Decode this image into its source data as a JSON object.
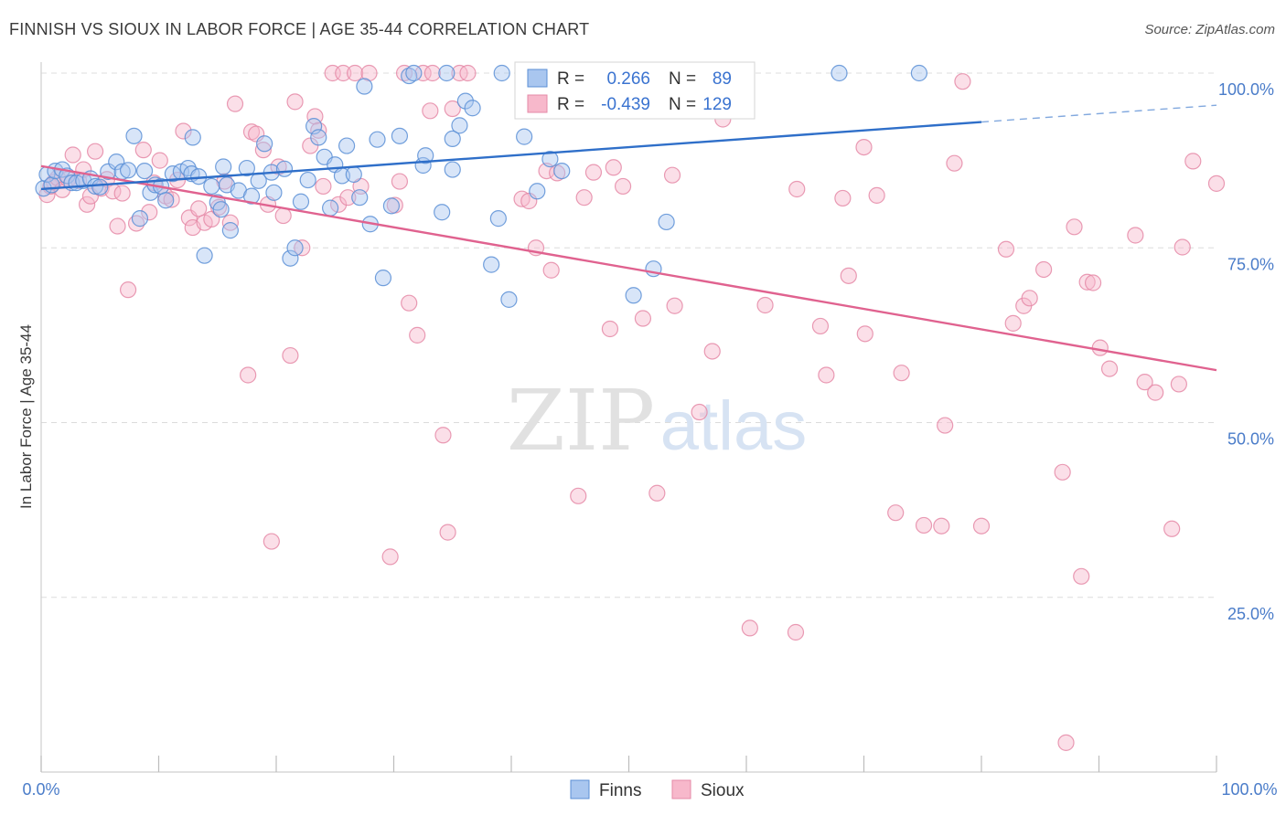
{
  "header": {
    "title": "FINNISH VS SIOUX IN LABOR FORCE | AGE 35-44 CORRELATION CHART",
    "source": "Source: ZipAtlas.com"
  },
  "watermark": {
    "zip": "ZIP",
    "atlas": "atlas"
  },
  "stats_legend": {
    "r_label": "R =",
    "n_label": "N =",
    "rows": [
      {
        "series": "Finns",
        "r": "0.266",
        "n": "89"
      },
      {
        "series": "Sioux",
        "r": "-0.439",
        "n": "129"
      }
    ]
  },
  "colors": {
    "finns_fill": "#a9c6ef",
    "finns_stroke": "#5b8fd6",
    "finns_line": "#2f6fc9",
    "sioux_fill": "#f7b8cb",
    "sioux_stroke": "#e58aa7",
    "sioux_line": "#e0628f",
    "value_text": "#3a73d0",
    "grid": "#dcdcdc"
  },
  "chart_data": {
    "type": "scatter",
    "title": "FINNISH VS SIOUX IN LABOR FORCE | AGE 35-44 CORRELATION CHART",
    "xlabel": "",
    "ylabel": "In Labor Force | Age 35-44",
    "xlim": [
      0,
      100
    ],
    "ylim": [
      0,
      100
    ],
    "x_tick_labels": [
      "0.0%",
      "100.0%"
    ],
    "y_tick_labels": [
      "25.0%",
      "50.0%",
      "75.0%",
      "100.0%"
    ],
    "y_ticks": [
      25,
      50,
      75,
      100
    ],
    "grid": true,
    "legend_position": "bottom-center",
    "series": [
      {
        "name": "Finns",
        "trend": {
          "x": [
            0,
            80
          ],
          "y": [
            83.4,
            93.0
          ],
          "dashed_to": [
            100,
            95.4
          ]
        },
        "points": [
          [
            0.2,
            83.5
          ],
          [
            0.5,
            85.5
          ],
          [
            0.9,
            84
          ],
          [
            1.2,
            86
          ],
          [
            1.8,
            86.2
          ],
          [
            2.2,
            85.3
          ],
          [
            2.6,
            84.3
          ],
          [
            3,
            84.3
          ],
          [
            3.6,
            84.6
          ],
          [
            4.2,
            84.9
          ],
          [
            4.6,
            83.8
          ],
          [
            5,
            83.7
          ],
          [
            5.7,
            85.9
          ],
          [
            6.4,
            87.3
          ],
          [
            6.9,
            85.9
          ],
          [
            7.4,
            86.1
          ],
          [
            7.9,
            91
          ],
          [
            8.4,
            79.2
          ],
          [
            8.8,
            86
          ],
          [
            9.3,
            82.9
          ],
          [
            9.7,
            84
          ],
          [
            10.2,
            83.8
          ],
          [
            10.6,
            81.8
          ],
          [
            11.2,
            85.6
          ],
          [
            11.9,
            85.9
          ],
          [
            12.5,
            86.4
          ],
          [
            12.8,
            85.6
          ],
          [
            12.9,
            90.8
          ],
          [
            13.4,
            85.2
          ],
          [
            13.9,
            73.9
          ],
          [
            14.5,
            83.8
          ],
          [
            15,
            81.5
          ],
          [
            15.3,
            80.5
          ],
          [
            15.5,
            86.6
          ],
          [
            15.8,
            84
          ],
          [
            16.1,
            77.5
          ],
          [
            16.8,
            83.2
          ],
          [
            17.5,
            86.4
          ],
          [
            17.9,
            82.4
          ],
          [
            18.5,
            84.6
          ],
          [
            19,
            89.9
          ],
          [
            19.6,
            85.8
          ],
          [
            19.8,
            82.9
          ],
          [
            20.7,
            86.3
          ],
          [
            21.2,
            73.5
          ],
          [
            21.6,
            75
          ],
          [
            22.1,
            81.6
          ],
          [
            22.7,
            84.7
          ],
          [
            23.2,
            92.4
          ],
          [
            23.6,
            90.8
          ],
          [
            24.1,
            88
          ],
          [
            24.6,
            80.7
          ],
          [
            25,
            86.9
          ],
          [
            25.6,
            85.3
          ],
          [
            26,
            89.6
          ],
          [
            26.6,
            85.5
          ],
          [
            27.1,
            82.2
          ],
          [
            27.5,
            98.1
          ],
          [
            28,
            78.4
          ],
          [
            28.6,
            90.5
          ],
          [
            29.1,
            70.7
          ],
          [
            29.8,
            81
          ],
          [
            30.5,
            91
          ],
          [
            31.3,
            99.6
          ],
          [
            31.7,
            100
          ],
          [
            32.5,
            86.8
          ],
          [
            32.7,
            88.2
          ],
          [
            34.1,
            80.1
          ],
          [
            34.5,
            100
          ],
          [
            35,
            86.2
          ],
          [
            35,
            90.6
          ],
          [
            35.6,
            92.5
          ],
          [
            36.1,
            96
          ],
          [
            36.7,
            95
          ],
          [
            38.3,
            72.6
          ],
          [
            38.9,
            79.2
          ],
          [
            39.2,
            100
          ],
          [
            39.8,
            67.6
          ],
          [
            41.1,
            90.9
          ],
          [
            42.2,
            83.1
          ],
          [
            43.3,
            87.7
          ],
          [
            44.3,
            86
          ],
          [
            46.4,
            100
          ],
          [
            50.4,
            68.2
          ],
          [
            52.1,
            72
          ],
          [
            53.2,
            78.7
          ],
          [
            53.5,
            100
          ],
          [
            67.9,
            100
          ],
          [
            74.7,
            100
          ]
        ]
      },
      {
        "name": "Sioux",
        "trend": {
          "x": [
            0,
            100
          ],
          "y": [
            86.7,
            57.5
          ]
        },
        "points": [
          [
            0.5,
            82.6
          ],
          [
            0.8,
            83.8
          ],
          [
            1.1,
            84.4
          ],
          [
            1.4,
            85
          ],
          [
            1.8,
            83.3
          ],
          [
            2.3,
            84.8
          ],
          [
            2.7,
            88.3
          ],
          [
            3.2,
            84.6
          ],
          [
            3.6,
            86.2
          ],
          [
            3.9,
            81.2
          ],
          [
            4.2,
            82.4
          ],
          [
            4.6,
            88.8
          ],
          [
            5.1,
            83.5
          ],
          [
            5.6,
            84.8
          ],
          [
            6.1,
            83.1
          ],
          [
            6.5,
            78.1
          ],
          [
            6.9,
            82.8
          ],
          [
            7.4,
            69
          ],
          [
            8.1,
            78.5
          ],
          [
            8.7,
            89
          ],
          [
            9.2,
            80.1
          ],
          [
            9.6,
            84.3
          ],
          [
            10.1,
            87.5
          ],
          [
            10.6,
            82.4
          ],
          [
            11.1,
            81.9
          ],
          [
            11.6,
            84.7
          ],
          [
            12.1,
            91.7
          ],
          [
            12.6,
            79.3
          ],
          [
            12.9,
            77.9
          ],
          [
            13.4,
            80.6
          ],
          [
            13.9,
            78.6
          ],
          [
            14.5,
            79.1
          ],
          [
            15.1,
            80.8
          ],
          [
            15.6,
            84.5
          ],
          [
            16.1,
            78.6
          ],
          [
            16.5,
            95.6
          ],
          [
            17.6,
            56.8
          ],
          [
            17.9,
            91.6
          ],
          [
            18.3,
            91.3
          ],
          [
            18.9,
            89
          ],
          [
            19.3,
            81.2
          ],
          [
            19.6,
            33
          ],
          [
            20.2,
            86.6
          ],
          [
            20.6,
            79.6
          ],
          [
            21.2,
            59.6
          ],
          [
            21.6,
            95.9
          ],
          [
            22.2,
            75
          ],
          [
            22.9,
            89.6
          ],
          [
            23.3,
            93.8
          ],
          [
            23.6,
            91.8
          ],
          [
            24,
            83.8
          ],
          [
            24.8,
            100
          ],
          [
            25.3,
            81.2
          ],
          [
            25.7,
            100
          ],
          [
            26.1,
            82.2
          ],
          [
            26.7,
            100
          ],
          [
            27.2,
            83.8
          ],
          [
            27.9,
            100
          ],
          [
            29.7,
            30.8
          ],
          [
            30.1,
            81.1
          ],
          [
            30.5,
            84.5
          ],
          [
            30.9,
            100
          ],
          [
            31.3,
            67.1
          ],
          [
            32,
            62.5
          ],
          [
            32.5,
            100
          ],
          [
            33.1,
            94.6
          ],
          [
            33.3,
            100
          ],
          [
            34.2,
            48.2
          ],
          [
            34.6,
            34.3
          ],
          [
            35,
            94.9
          ],
          [
            35.6,
            100
          ],
          [
            36.3,
            100
          ],
          [
            40.9,
            82
          ],
          [
            41.5,
            81.7
          ],
          [
            42.1,
            75
          ],
          [
            42.7,
            100
          ],
          [
            43,
            86
          ],
          [
            43.4,
            71.8
          ],
          [
            43.9,
            85.7
          ],
          [
            45.7,
            39.5
          ],
          [
            46.2,
            82.2
          ],
          [
            47,
            85.8
          ],
          [
            48.4,
            63.4
          ],
          [
            48.7,
            86.5
          ],
          [
            49.5,
            83.8
          ],
          [
            51.2,
            64.9
          ],
          [
            52.4,
            39.9
          ],
          [
            53.7,
            85.4
          ],
          [
            53.9,
            66.7
          ],
          [
            56,
            51.5
          ],
          [
            57.1,
            60.2
          ],
          [
            58,
            93.4
          ],
          [
            60.3,
            20.6
          ],
          [
            61.6,
            66.8
          ],
          [
            64.2,
            20
          ],
          [
            64.3,
            83.4
          ],
          [
            66.3,
            63.8
          ],
          [
            66.8,
            56.8
          ],
          [
            68.2,
            82.1
          ],
          [
            68.7,
            71
          ],
          [
            70,
            89.4
          ],
          [
            70.1,
            62.7
          ],
          [
            71.1,
            82.5
          ],
          [
            72.7,
            37.1
          ],
          [
            73.2,
            57.1
          ],
          [
            75.1,
            35.3
          ],
          [
            76.6,
            35.2
          ],
          [
            76.9,
            49.6
          ],
          [
            77.7,
            87.1
          ],
          [
            78.4,
            98.8
          ],
          [
            80,
            35.2
          ],
          [
            82.1,
            74.8
          ],
          [
            82.7,
            64.2
          ],
          [
            83.6,
            66.7
          ],
          [
            84.1,
            67.8
          ],
          [
            85.3,
            71.9
          ],
          [
            86.9,
            42.9
          ],
          [
            87.2,
            4.2
          ],
          [
            87.9,
            78
          ],
          [
            88.5,
            28
          ],
          [
            89,
            70.1
          ],
          [
            89.5,
            70
          ],
          [
            90.1,
            60.7
          ],
          [
            90.9,
            57.7
          ],
          [
            93.1,
            76.8
          ],
          [
            93.9,
            55.8
          ],
          [
            94.8,
            54.3
          ],
          [
            96.2,
            34.8
          ],
          [
            96.8,
            55.5
          ],
          [
            97.1,
            75.1
          ],
          [
            98,
            87.4
          ],
          [
            100,
            84.2
          ]
        ]
      }
    ]
  }
}
